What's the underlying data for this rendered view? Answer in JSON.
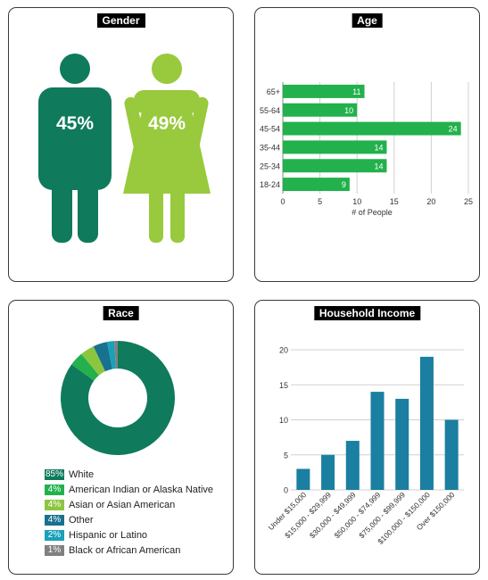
{
  "gender": {
    "title": "Gender",
    "male_pct": "45%",
    "female_pct": "49%",
    "male_color": "#0f7a5c",
    "female_color": "#99c93c"
  },
  "age": {
    "title": "Age",
    "xlabel": "# of People"
  },
  "race": {
    "title": "Race"
  },
  "income": {
    "title": "Household Income"
  },
  "chart_data": [
    {
      "type": "bar",
      "orientation": "horizontal",
      "title": "Age",
      "xlabel": "# of People",
      "ylabel": "",
      "categories": [
        "65+",
        "55-64",
        "45-54",
        "35-44",
        "25-34",
        "18-24"
      ],
      "values": [
        11,
        10,
        24,
        14,
        14,
        9
      ],
      "xlim": [
        0,
        25
      ],
      "xticks": [
        0,
        5,
        10,
        15,
        20,
        25
      ],
      "grid": true,
      "color": "#22b14c"
    },
    {
      "type": "pie",
      "style": "donut",
      "title": "Race",
      "slices": [
        {
          "label": "White",
          "value": 85,
          "pct_label": "85%",
          "color": "#0f7a5c"
        },
        {
          "label": "American Indian or Alaska Native",
          "value": 4,
          "pct_label": "4%",
          "color": "#22b14c"
        },
        {
          "label": "Asian or Asian American",
          "value": 4,
          "pct_label": "4%",
          "color": "#8cc63f"
        },
        {
          "label": "Other",
          "value": 4,
          "pct_label": "4%",
          "color": "#17718f"
        },
        {
          "label": "Hispanic or Latino",
          "value": 2,
          "pct_label": "2%",
          "color": "#1aa0b8"
        },
        {
          "label": "Black or African American",
          "value": 1,
          "pct_label": "1%",
          "color": "#808080"
        }
      ],
      "legend_position": "bottom"
    },
    {
      "type": "bar",
      "title": "Household Income",
      "xlabel": "",
      "ylabel": "",
      "categories": [
        "Under $15,000",
        "$15,000 - $29,999",
        "$30,000 - $49,999",
        "$50,000 - $74,999",
        "$75,000 - $99,999",
        "$100,000 - $150,000",
        "Over $150,000"
      ],
      "values": [
        3,
        5,
        7,
        14,
        13,
        19,
        10
      ],
      "ylim": [
        0,
        20
      ],
      "yticks": [
        0,
        5,
        10,
        15,
        20
      ],
      "grid": true,
      "color": "#1a7fa0"
    }
  ]
}
